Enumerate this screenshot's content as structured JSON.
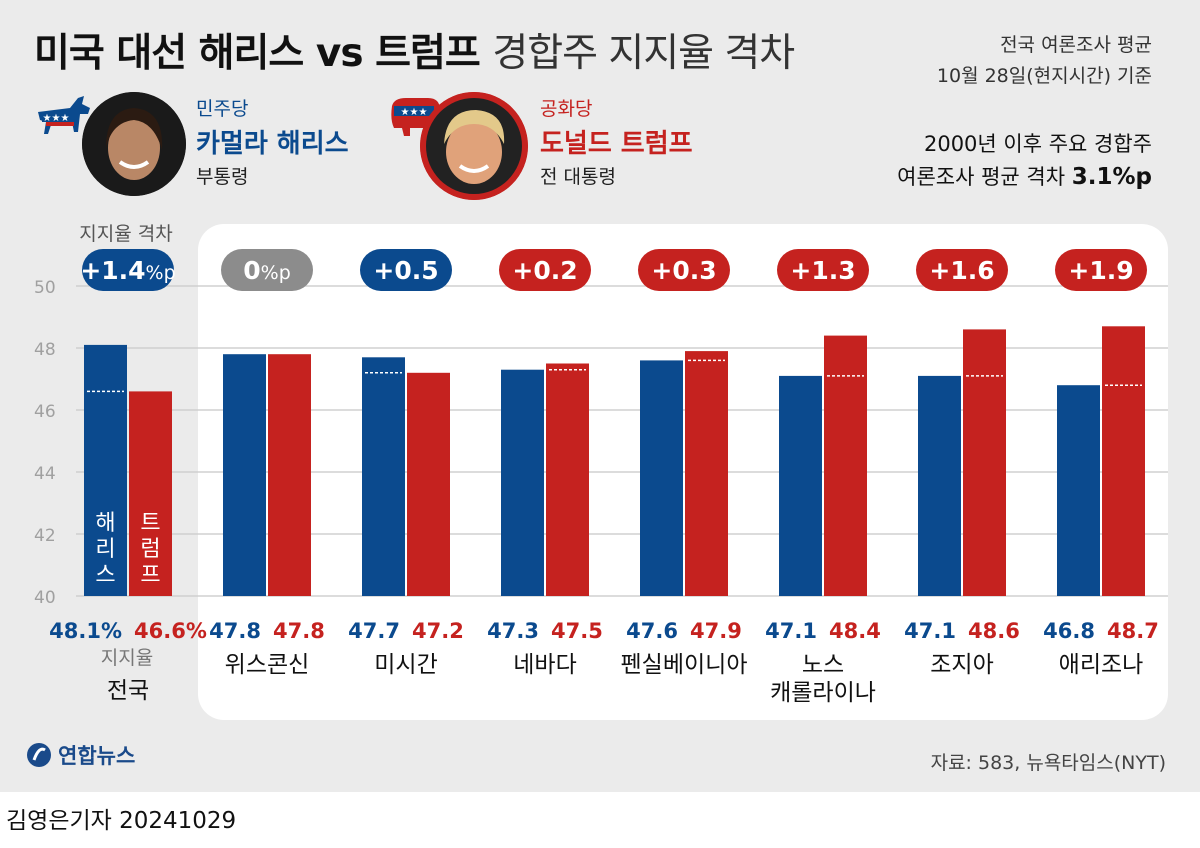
{
  "title": {
    "main": "미국 대선 해리스 vs 트럼프",
    "sub": "경합주 지지율 격차"
  },
  "note": {
    "line1": "전국 여론조사 평균",
    "line2": "10월 28일(현지시간) 기준"
  },
  "average_note": {
    "line1": "2000년 이후 주요 경합주",
    "line2_prefix": "여론조사 평균 격차 ",
    "line2_value": "3.1%p"
  },
  "candidates": {
    "dem": {
      "party": "민주당",
      "name": "카멀라 해리스",
      "role": "부통령",
      "color": "#0b4a8e"
    },
    "rep": {
      "party": "공화당",
      "name": "도널드 트럼프",
      "role": "전 대통령",
      "color": "#c5221f"
    }
  },
  "colors": {
    "harris": "#0b4a8e",
    "trump": "#c5221f",
    "tie": "#8c8c8c"
  },
  "chart_data": {
    "type": "bar",
    "title": "미국 대선 해리스 vs 트럼프 경합주 지지율 격차",
    "xlabel": "",
    "ylabel": "지지율",
    "ylim": [
      40,
      50
    ],
    "yticks": [
      40,
      42,
      44,
      46,
      48,
      50
    ],
    "gap_header": "지지율 격차",
    "percent_axis_label": "지지율",
    "in_bar_labels": {
      "harris": "해리스",
      "trump": "트럼프"
    },
    "categories": [
      [
        "전국"
      ],
      [
        "위스콘신"
      ],
      [
        "미시간"
      ],
      [
        "네바다"
      ],
      [
        "펜실베이니아"
      ],
      [
        "노스",
        "캐롤라이나"
      ],
      [
        "조지아"
      ],
      [
        "애리조나"
      ]
    ],
    "series": [
      {
        "name": "해리스",
        "values": [
          48.1,
          47.8,
          47.7,
          47.3,
          47.6,
          47.1,
          47.1,
          46.8
        ],
        "labels": [
          "48.1%",
          "47.8",
          "47.7",
          "47.3",
          "47.6",
          "47.1",
          "47.1",
          "46.8"
        ]
      },
      {
        "name": "트럼프",
        "values": [
          46.6,
          47.8,
          47.2,
          47.5,
          47.9,
          48.4,
          48.6,
          48.7
        ],
        "labels": [
          "46.6%",
          "47.8",
          "47.2",
          "47.5",
          "47.9",
          "48.4",
          "48.6",
          "48.7"
        ]
      }
    ],
    "gaps": [
      {
        "num": "+1.4",
        "unit": "%p",
        "leader": "harris"
      },
      {
        "num": "0",
        "unit": "%p",
        "leader": "tie"
      },
      {
        "num": "+0.5",
        "unit": "",
        "leader": "harris"
      },
      {
        "num": "+0.2",
        "unit": "",
        "leader": "trump"
      },
      {
        "num": "+0.3",
        "unit": "",
        "leader": "trump"
      },
      {
        "num": "+1.3",
        "unit": "",
        "leader": "trump"
      },
      {
        "num": "+1.6",
        "unit": "",
        "leader": "trump"
      },
      {
        "num": "+1.9",
        "unit": "",
        "leader": "trump"
      }
    ]
  },
  "source": "자료: 583, 뉴욕타임스(NYT)",
  "brand": "연합뉴스",
  "byline": "김영은기자  20241029"
}
